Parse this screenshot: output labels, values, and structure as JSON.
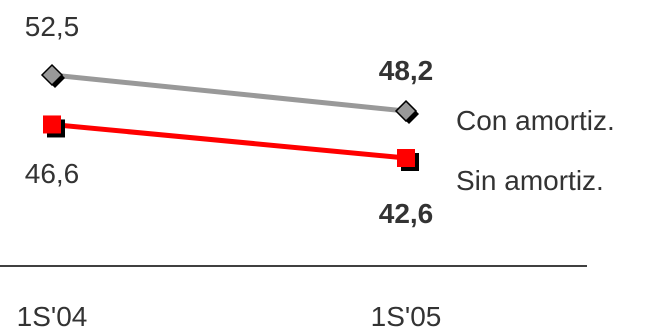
{
  "chart_data": {
    "type": "line",
    "categories": [
      "1S'04",
      "1S'05"
    ],
    "series": [
      {
        "name": "Con amortiz.",
        "values": [
          52.5,
          48.2
        ],
        "value_labels": [
          "52,5",
          "48,2"
        ],
        "color": "#999999",
        "marker": "diamond"
      },
      {
        "name": "Sin amortiz.",
        "values": [
          46.6,
          42.6
        ],
        "value_labels": [
          "46,6",
          "42,6"
        ],
        "color": "#ff0000",
        "marker": "square"
      }
    ],
    "legend_position": "right",
    "grid": false
  }
}
